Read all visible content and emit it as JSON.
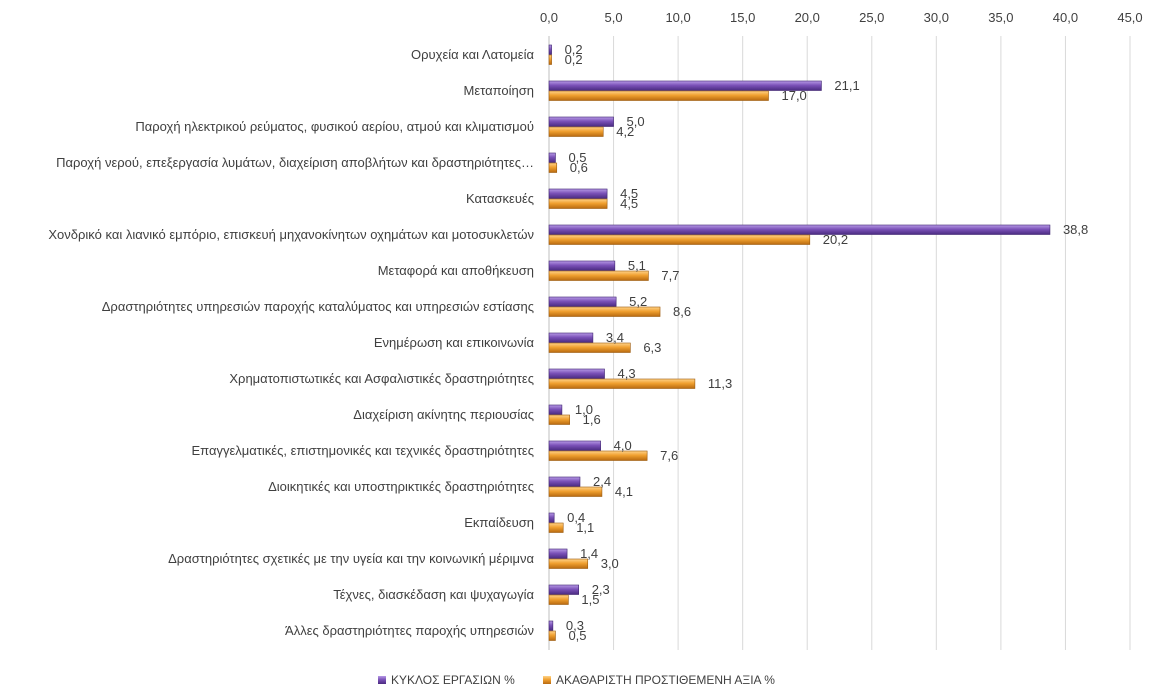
{
  "chart_data": {
    "type": "bar",
    "orientation": "horizontal",
    "xlim": [
      0,
      45
    ],
    "ticks": [
      "0,0",
      "5,0",
      "10,0",
      "15,0",
      "20,0",
      "25,0",
      "30,0",
      "35,0",
      "40,0",
      "45,0"
    ],
    "axis_position": "top",
    "grid": true,
    "legend_position": "bottom",
    "categories": [
      "Ορυχεία και Λατομεία",
      "Μεταποίηση",
      "Παροχή ηλεκτρικού ρεύματος, φυσικού αερίου, ατμού και κλιματισμού",
      "Παροχή νερού, επεξεργασία λυμάτων, διαχείριση αποβλήτων και δραστηριότητες…",
      "Κατασκευές",
      "Χονδρικό και λιανικό εμπόριο, επισκευή μηχανοκίνητων οχημάτων και μοτοσυκλετών",
      "Μεταφορά και αποθήκευση",
      "Δραστηριότητες υπηρεσιών παροχής καταλύματος και υπηρεσιών εστίασης",
      "Ενημέρωση και επικοινωνία",
      "Χρηματοπιστωτικές και Ασφαλιστικές δραστηριότητες",
      "Διαχείριση ακίνητης περιουσίας",
      "Επαγγελματικές, επιστημονικές και τεχνικές δραστηριότητες",
      "Διοικητικές και υποστηρικτικές δραστηριότητες",
      "Εκπαίδευση",
      "Δραστηριότητες σχετικές με την υγεία και την κοινωνική μέριμνα",
      "Τέχνες, διασκέδαση και ψυχαγωγία",
      "Άλλες δραστηριότητες παροχής υπηρεσιών"
    ],
    "series": [
      {
        "name": "ΚΥΚΛΟΣ ΕΡΓΑΣΙΩΝ %",
        "color": "#7B52B8",
        "values": [
          0.2,
          21.1,
          5.0,
          0.5,
          4.5,
          38.8,
          5.1,
          5.2,
          3.4,
          4.3,
          1.0,
          4.0,
          2.4,
          0.4,
          1.4,
          2.3,
          0.3
        ],
        "labels": [
          "0,2",
          "21,1",
          "5,0",
          "0,5",
          "4,5",
          "38,8",
          "5,1",
          "5,2",
          "3,4",
          "4,3",
          "1,0",
          "4,0",
          "2,4",
          "0,4",
          "1,4",
          "2,3",
          "0,3"
        ]
      },
      {
        "name": "ΑΚΑΘΑΡΙΣΤΗ ΠΡΟΣΤΙΘΕΜΕΝΗ ΑΞΙΑ %",
        "color": "#F0A030",
        "values": [
          0.2,
          17.0,
          4.2,
          0.6,
          4.5,
          20.2,
          7.7,
          8.6,
          6.3,
          11.3,
          1.6,
          7.6,
          4.1,
          1.1,
          3.0,
          1.5,
          0.5
        ],
        "labels": [
          "0,2",
          "17,0",
          "4,2",
          "0,6",
          "4,5",
          "20,2",
          "7,7",
          "8,6",
          "6,3",
          "11,3",
          "1,6",
          "7,6",
          "4,1",
          "1,1",
          "3,0",
          "1,5",
          "0,5"
        ]
      }
    ]
  }
}
